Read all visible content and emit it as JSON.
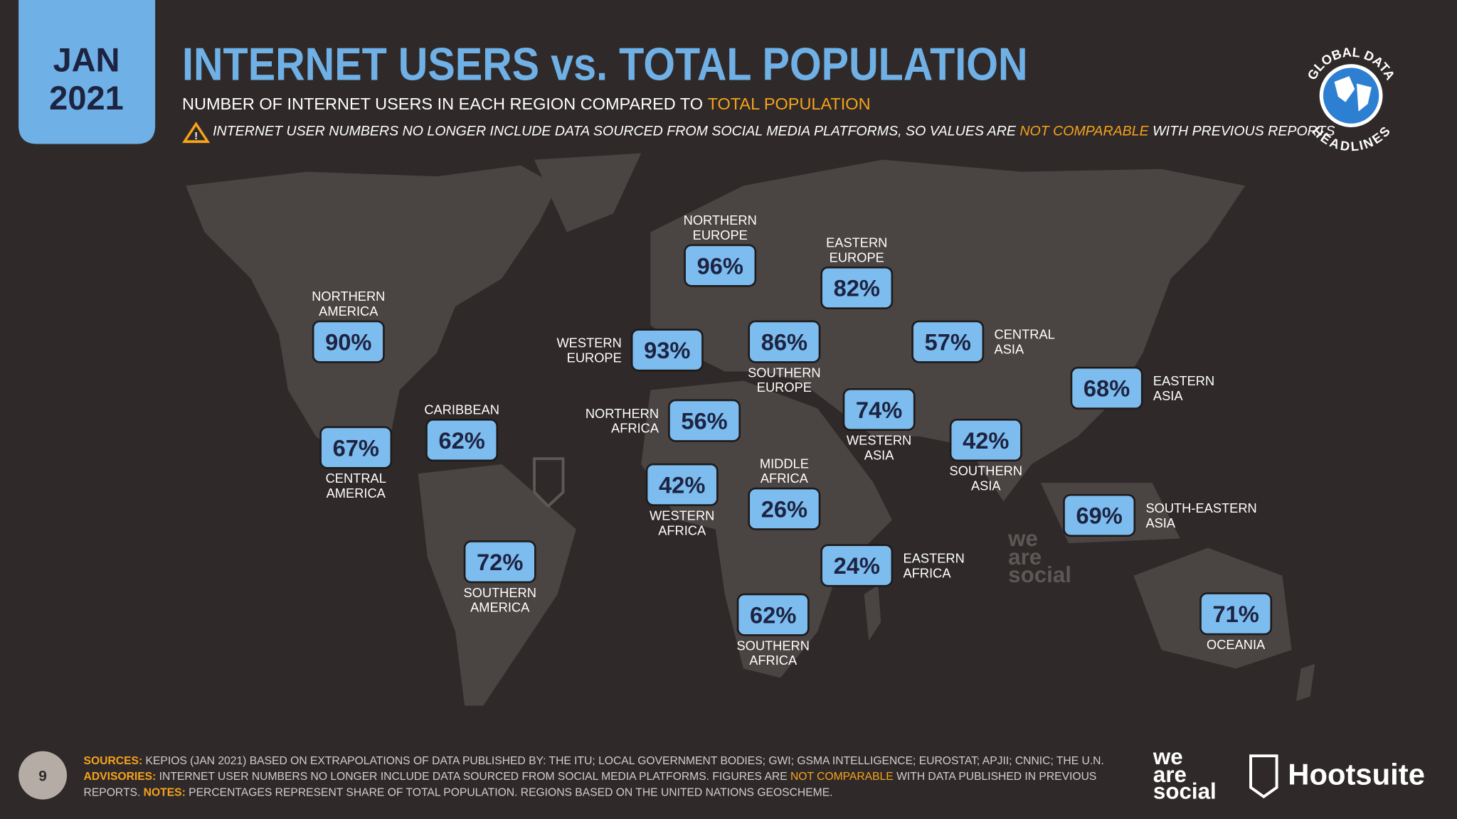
{
  "header": {
    "month": "JAN",
    "year": "2021",
    "title": "INTERNET USERS vs. TOTAL POPULATION",
    "subtitle": "NUMBER OF INTERNET USERS IN EACH REGION COMPARED TO ",
    "subtitle_highlight": "TOTAL POPULATION",
    "warning": "INTERNET USER NUMBERS NO LONGER INCLUDE DATA SOURCED FROM SOCIAL MEDIA PLATFORMS, SO VALUES ARE ",
    "warning_highlight": "NOT COMPARABLE",
    "warning_end": " WITH PREVIOUS REPORTS"
  },
  "badge": {
    "top": "GLOBAL DATA",
    "bottom": "HEADLINES"
  },
  "regions": [
    {
      "name": [
        "NORTHERN",
        "AMERICA"
      ],
      "value": "90%"
    },
    {
      "name": [
        "CENTRAL",
        "AMERICA"
      ],
      "value": "67%"
    },
    {
      "name": [
        "CARIBBEAN"
      ],
      "value": "62%"
    },
    {
      "name": [
        "SOUTHERN",
        "AMERICA"
      ],
      "value": "72%"
    },
    {
      "name": [
        "NORTHERN",
        "EUROPE"
      ],
      "value": "96%"
    },
    {
      "name": [
        "WESTERN",
        "EUROPE"
      ],
      "value": "93%"
    },
    {
      "name": [
        "SOUTHERN",
        "EUROPE"
      ],
      "value": "86%"
    },
    {
      "name": [
        "EASTERN",
        "EUROPE"
      ],
      "value": "82%"
    },
    {
      "name": [
        "NORTHERN",
        "AFRICA"
      ],
      "value": "56%"
    },
    {
      "name": [
        "WESTERN",
        "AFRICA"
      ],
      "value": "42%"
    },
    {
      "name": [
        "MIDDLE",
        "AFRICA"
      ],
      "value": "26%"
    },
    {
      "name": [
        "EASTERN",
        "AFRICA"
      ],
      "value": "24%"
    },
    {
      "name": [
        "SOUTHERN",
        "AFRICA"
      ],
      "value": "62%"
    },
    {
      "name": [
        "WESTERN",
        "ASIA"
      ],
      "value": "74%"
    },
    {
      "name": [
        "CENTRAL",
        "ASIA"
      ],
      "value": "57%"
    },
    {
      "name": [
        "SOUTHERN",
        "ASIA"
      ],
      "value": "42%"
    },
    {
      "name": [
        "EASTERN",
        "ASIA"
      ],
      "value": "68%"
    },
    {
      "name": [
        "SOUTH-EASTERN",
        "ASIA"
      ],
      "value": "69%"
    },
    {
      "name": [
        "OCEANIA"
      ],
      "value": "71%"
    }
  ],
  "footer": {
    "page": "9",
    "lines": [
      [
        {
          "text": "SOURCES:",
          "color": "#f7a21b"
        },
        {
          "text": " KEPIOS (JAN 2021) BASED ON EXTRAPOLATIONS OF DATA PUBLISHED BY: THE ITU; LOCAL GOVERNMENT BODIES; GWI; GSMA INTELLIGENCE; EUROSTAT; APJII; CNNIC; THE U.N.",
          "color": "#cfcfcf"
        }
      ],
      [
        {
          "text": "ADVISORIES:",
          "color": "#f7a21b"
        },
        {
          "text": " INTERNET USER NUMBERS NO LONGER INCLUDE DATA SOURCED FROM SOCIAL MEDIA PLATFORMS. FIGURES ARE ",
          "color": "#cfcfcf"
        },
        {
          "text": "NOT COMPARABLE",
          "color": "#f7a21b"
        },
        {
          "text": " WITH DATA PUBLISHED IN PREVIOUS",
          "color": "#cfcfcf"
        }
      ],
      [
        {
          "text": "REPORTS. ",
          "color": "#cfcfcf"
        },
        {
          "text": "NOTES:",
          "color": "#f7a21b"
        },
        {
          "text": " PERCENTAGES REPRESENT SHARE OF TOTAL POPULATION. REGIONS BASED ON THE UNITED NATIONS GEOSCHEME.",
          "color": "#cfcfcf"
        }
      ]
    ]
  },
  "logos": {
    "we": "we",
    "are": "are",
    "social": "social",
    "hootsuite": "Hootsuite"
  }
}
